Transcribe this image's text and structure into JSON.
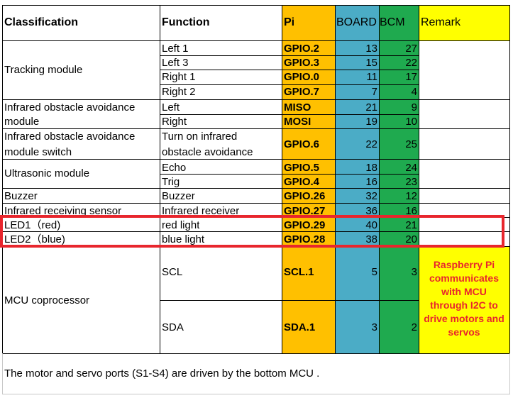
{
  "headers": {
    "classification": "Classification",
    "function": "Function",
    "pi": "Pi",
    "board": "BOARD",
    "bcm": "BCM",
    "remark": "Remark"
  },
  "groups": {
    "tracking": "Tracking module",
    "ir_obstacle_l1": "Infrared obstacle avoidance",
    "ir_obstacle_l2": "module",
    "ir_switch_l1": "Infrared obstacle avoidance",
    "ir_switch_l2": "module switch",
    "ultrasonic": "Ultrasonic module",
    "buzzer": "Buzzer",
    "ir_receiving": "Infrared receiving sensor",
    "led1": "LED1（red)",
    "led2": "LED2（blue)",
    "mcu": "MCU coprocessor"
  },
  "rows": [
    {
      "function": "Left 1",
      "pi": "GPIO.2",
      "board": "13",
      "bcm": "27"
    },
    {
      "function": "Left 3",
      "pi": "GPIO.3",
      "board": "15",
      "bcm": "22"
    },
    {
      "function": "Right 1",
      "pi": "GPIO.0",
      "board": "11",
      "bcm": "17"
    },
    {
      "function": "Right 2",
      "pi": "GPIO.7",
      "board": "7",
      "bcm": "4"
    },
    {
      "function": "Left",
      "pi": "MISO",
      "board": "21",
      "bcm": "9"
    },
    {
      "function": "Right",
      "pi": "MOSI",
      "board": "19",
      "bcm": "10"
    },
    {
      "function": "Turn on infrared",
      "function2": "obstacle avoidance",
      "pi": "GPIO.6",
      "board": "22",
      "bcm": "25"
    },
    {
      "function": "Echo",
      "pi": "GPIO.5",
      "board": "18",
      "bcm": "24"
    },
    {
      "function": "Trig",
      "pi": "GPIO.4",
      "board": "16",
      "bcm": "23"
    },
    {
      "function": "Buzzer",
      "pi": "GPIO.26",
      "board": "32",
      "bcm": "12"
    },
    {
      "function": "Infrared receiver",
      "pi": "GPIO.27",
      "board": "36",
      "bcm": "16"
    },
    {
      "function": "red light",
      "pi": "GPIO.29",
      "board": "40",
      "bcm": "21"
    },
    {
      "function": "blue light",
      "pi": "GPIO.28",
      "board": "38",
      "bcm": "20"
    },
    {
      "function": "SCL",
      "pi": "SCL.1",
      "board": "5",
      "bcm": "3"
    },
    {
      "function": "SDA",
      "pi": "SDA.1",
      "board": "3",
      "bcm": "2"
    }
  ],
  "remark_mcu": "Raspberry Pi communicates with MCU through I2C to drive motors and servos",
  "footer": "The motor and servo ports (S1-S4) are driven by the bottom MCU ."
}
